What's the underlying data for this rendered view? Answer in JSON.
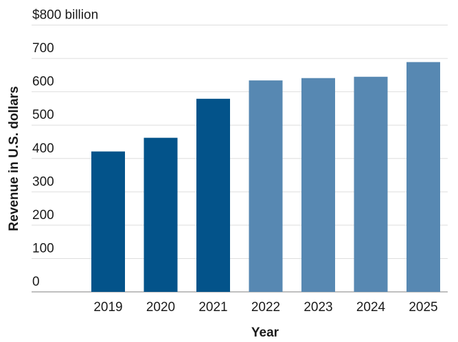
{
  "chart_data": {
    "type": "bar",
    "categories": [
      "2019",
      "2020",
      "2021",
      "2022",
      "2023",
      "2024",
      "2025"
    ],
    "values": [
      421,
      462,
      579,
      634,
      641,
      645,
      689
    ],
    "highlight_colors": [
      "#03538a",
      "#03538a",
      "#03538a",
      "#5788b2",
      "#5788b2",
      "#5788b2",
      "#5788b2"
    ],
    "y_ticks": [
      0,
      100,
      200,
      300,
      400,
      500,
      600,
      700,
      800
    ],
    "y_tick_labels": [
      "0",
      "100",
      "200",
      "300",
      "400",
      "500",
      "600",
      "700",
      "$800 billion"
    ],
    "ylim": [
      0,
      800
    ],
    "xlabel": "Year",
    "ylabel": "Revenue in U.S. dollars",
    "title": "",
    "grid": true,
    "legend": "none"
  },
  "colors": {
    "gridline": "#dedede",
    "baseline": "#999999",
    "text": "#1a1a1a"
  }
}
